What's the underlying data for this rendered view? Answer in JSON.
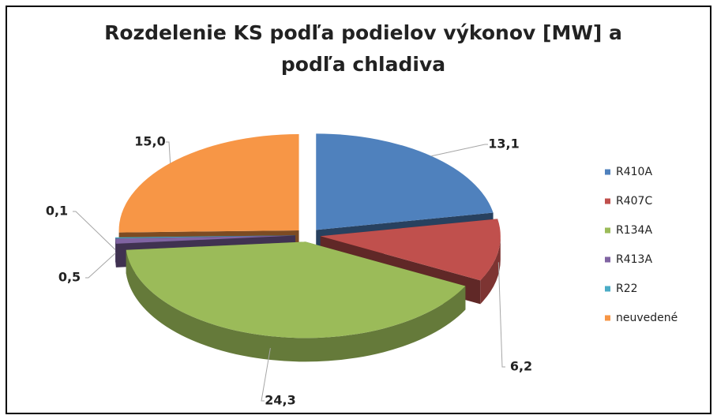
{
  "chart_data": {
    "type": "pie3d",
    "title": "Rozdelenie KS podľa podielov výkonov [MW] a podľa chladiva",
    "categories": [
      "R410A",
      "R407C",
      "R134A",
      "R413A",
      "R22",
      "neuvedené"
    ],
    "values": [
      13.1,
      6.2,
      24.3,
      0.5,
      0.1,
      15.0
    ],
    "value_labels": [
      "13,1",
      "6,2",
      "24,3",
      "0,5",
      "0,1",
      "15,0"
    ],
    "colors": [
      "#4f81bd",
      "#c0504d",
      "#9bbb59",
      "#8064a2",
      "#4bacc6",
      "#f79646"
    ],
    "legend": "right"
  }
}
